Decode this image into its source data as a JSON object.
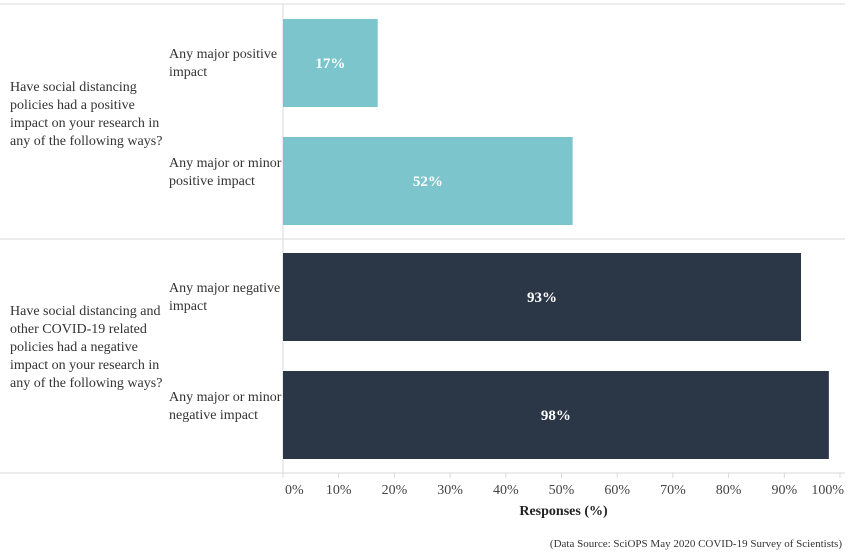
{
  "chart_data": {
    "type": "bar",
    "orientation": "horizontal",
    "groups": [
      {
        "question": "Have social distancing policies had a positive impact on your research in any of the following ways?",
        "color": "#7cc5cc",
        "bars": [
          {
            "category": "Any major positive impact",
            "value": 17,
            "label": "17%"
          },
          {
            "category": "Any major or minor positive impact",
            "value": 52,
            "label": "52%"
          }
        ]
      },
      {
        "question": "Have social distancing and other COVID-19 related policies had a negative impact on your research in any of the following ways?",
        "color": "#2b3646",
        "bars": [
          {
            "category": "Any major negative impact",
            "value": 93,
            "label": "93%"
          },
          {
            "category": "Any major or minor negative impact",
            "value": 98,
            "label": "98%"
          }
        ]
      }
    ],
    "xlabel": "Responses (%)",
    "xlim": [
      0,
      100
    ],
    "xticks": [
      "0%",
      "10%",
      "20%",
      "30%",
      "40%",
      "50%",
      "60%",
      "70%",
      "80%",
      "90%",
      "100%"
    ],
    "grid": false,
    "source": "(Data Source: SciOPS May 2020 COVID-19 Survey of Scientists)"
  }
}
